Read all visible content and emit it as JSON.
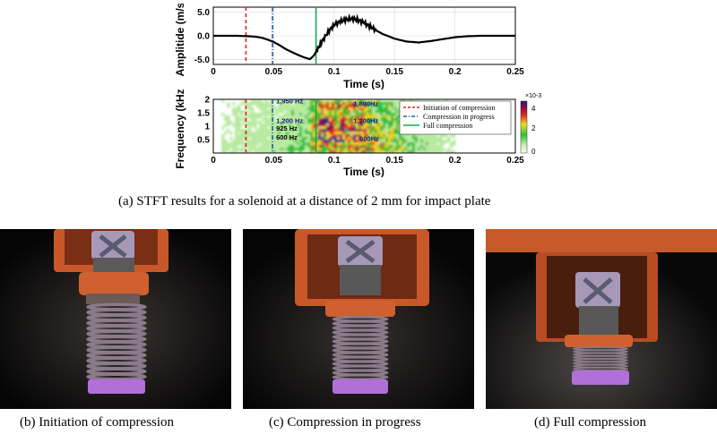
{
  "figure": {
    "chart_data": [
      {
        "type": "line",
        "ylabel": "Amplitide (m/s)",
        "xlabel": "Time (s)",
        "xlim": [
          0,
          0.25
        ],
        "ylim": [
          -6,
          6
        ],
        "xticks": [
          "0",
          "0.05",
          "0.1",
          "0.15",
          "0.2",
          "0.25"
        ],
        "yticks": [
          "5.0",
          "0.0",
          "-5.0"
        ],
        "grid": true,
        "series": [
          {
            "x": [
              0,
              0.02,
              0.03,
              0.035,
              0.04,
              0.045,
              0.05,
              0.055,
              0.06,
              0.065,
              0.07,
              0.075,
              0.08,
              0.083,
              0.086,
              0.09,
              0.095,
              0.1,
              0.105,
              0.11,
              0.115,
              0.12,
              0.125,
              0.13,
              0.135,
              0.14,
              0.15,
              0.16,
              0.17,
              0.18,
              0.19,
              0.2,
              0.21,
              0.22,
              0.23,
              0.25
            ],
            "y": [
              0,
              0,
              -0.1,
              -0.2,
              -0.4,
              -0.8,
              -1.3,
              -2.0,
              -2.8,
              -3.4,
              -4.0,
              -4.5,
              -4.9,
              -4.2,
              -3.0,
              -1.2,
              0.8,
              2.3,
              3.0,
              3.4,
              3.6,
              3.3,
              2.7,
              1.9,
              1.1,
              0.4,
              -0.6,
              -1.2,
              -1.4,
              -1.1,
              -0.7,
              -0.3,
              -0.1,
              0,
              0,
              0
            ]
          }
        ],
        "vlines": [
          {
            "x": 0.027,
            "color": "#e02020",
            "style": "dashed"
          },
          {
            "x": 0.049,
            "color": "#1a5fb0",
            "style": "dashdot"
          },
          {
            "x": 0.085,
            "color": "#1aa84a",
            "style": "solid"
          }
        ]
      },
      {
        "type": "heatmap",
        "ylabel": "Frequency (kHz)",
        "xlabel": "Time (s)",
        "xlim": [
          0,
          0.25
        ],
        "ylim": [
          0,
          2
        ],
        "xticks": [
          "0",
          "0.05",
          "0.1",
          "0.15",
          "0.2",
          "0.25"
        ],
        "yticks": [
          "2",
          "1.5",
          "1",
          "0.5"
        ],
        "colorbar": {
          "ticks": [
            "4",
            "2",
            "0"
          ],
          "exponent": "×10-3"
        },
        "annotations": [
          {
            "text": "1,950 Hz",
            "x": 0.052,
            "y": 1.95,
            "color": "#102080"
          },
          {
            "text": "1,200 Hz",
            "x": 0.052,
            "y": 1.22,
            "color": "#102080"
          },
          {
            "text": "925 Hz",
            "x": 0.052,
            "y": 0.94,
            "color": "#000000"
          },
          {
            "text": "600 Hz",
            "x": 0.052,
            "y": 0.6,
            "color": "#000000"
          },
          {
            "text": "1,800Hz",
            "x": 0.116,
            "y": 1.85,
            "color": "#102080"
          },
          {
            "text": "1,200Hz",
            "x": 0.116,
            "y": 1.22,
            "color": "#102080"
          },
          {
            "text": "600Hz",
            "x": 0.121,
            "y": 0.55,
            "color": "#102080"
          }
        ],
        "legend": {
          "placement": "top-right",
          "entries": [
            {
              "label": "Initiation of compression",
              "color": "#e02020",
              "style": "dashed"
            },
            {
              "label": "Compression in progress",
              "color": "#1a5fb0",
              "style": "dashdot"
            },
            {
              "label": "Full compression",
              "color": "#1aa84a",
              "style": "solid"
            }
          ]
        }
      }
    ],
    "caption_a": "(a)  STFT  results  for  a  solenoid  at  a  distance  of  2 mm  for  impact plate",
    "photos": [
      {
        "caption": "(b)  Initiation  of  compression"
      },
      {
        "caption": "(c)  Compression  in  progress"
      },
      {
        "caption": "(d)  Full  compression"
      }
    ]
  }
}
